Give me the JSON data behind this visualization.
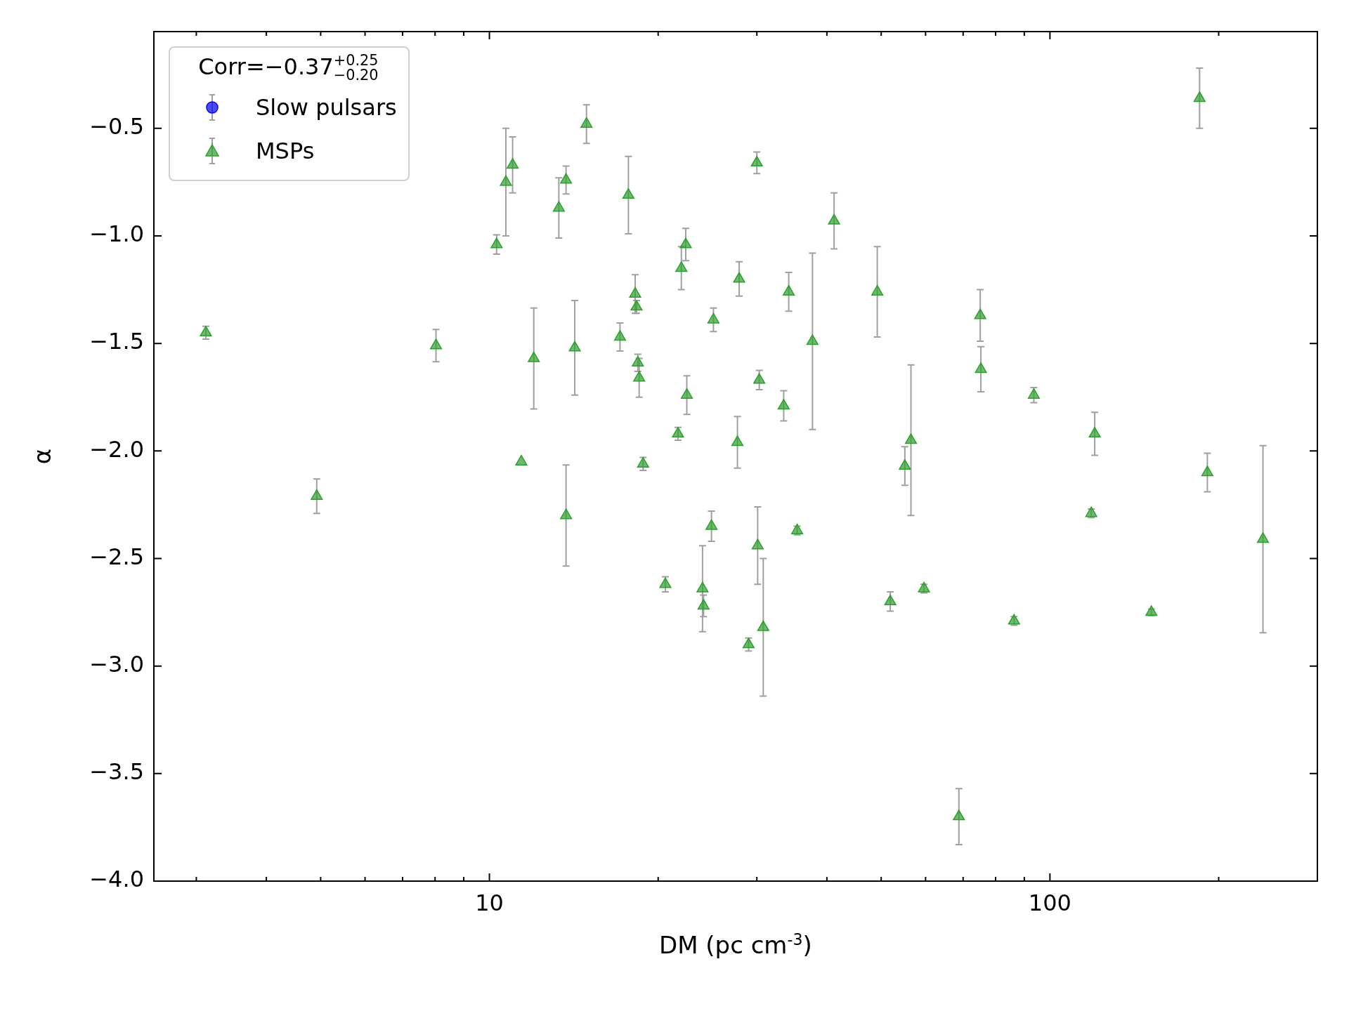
{
  "chart_data": {
    "type": "scatter",
    "xlabel": "DM (pc cm$^{-3}$)",
    "ylabel": "α",
    "legend_title": "Corr=−0.37$^{+0.25}$$_{−0.20}$",
    "legend": "top left",
    "log": "x",
    "grid": false,
    "xlim": [
      2.52,
      300
    ],
    "xticks": [
      {
        "value": 3,
        "label": null
      },
      {
        "value": 4,
        "label": null
      },
      {
        "value": 5,
        "label": null
      },
      {
        "value": 6,
        "label": null
      },
      {
        "value": 7,
        "label": null
      },
      {
        "value": 8,
        "label": null
      },
      {
        "value": 9,
        "label": null
      },
      10,
      {
        "value": 20,
        "label": null
      },
      {
        "value": 30,
        "label": null
      },
      {
        "value": 40,
        "label": null
      },
      {
        "value": 50,
        "label": null
      },
      {
        "value": 60,
        "label": null
      },
      {
        "value": 70,
        "label": null
      },
      {
        "value": 80,
        "label": null
      },
      {
        "value": 90,
        "label": null
      },
      100,
      {
        "value": 200,
        "label": null
      }
    ],
    "ylim": [
      -4.0,
      -0.05
    ],
    "yticks": [
      {
        "value": -4.0,
        "label": "−4.0"
      },
      {
        "value": -3.5,
        "label": "−3.5"
      },
      {
        "value": -3.0,
        "label": "−3.0"
      },
      {
        "value": -2.5,
        "label": "−2.5"
      },
      {
        "value": -2.0,
        "label": "−2.0"
      },
      {
        "value": -1.5,
        "label": "−1.5"
      },
      {
        "value": -1.0,
        "label": "−1.0"
      },
      {
        "value": -0.5,
        "label": "−0.5"
      }
    ],
    "series": [
      {
        "name": "Slow pulsars",
        "color": "#0000ff",
        "marker": "circle"
      },
      {
        "name": "MSPs",
        "color": "#2ca02c",
        "marker": "triangle",
        "x": [
          3.12,
          4.92,
          8.03,
          10.3,
          10.7,
          11.0,
          11.4,
          12.0,
          13.3,
          13.7,
          13.7,
          14.2,
          14.9,
          17.1,
          17.7,
          18.2,
          18.3,
          18.4,
          18.5,
          18.8,
          20.6,
          21.7,
          22.0,
          22.4,
          22.5,
          24.0,
          24.1,
          24.9,
          25.1,
          27.7,
          27.9,
          29.0,
          30.0,
          30.1,
          30.3,
          30.8,
          33.5,
          34.2,
          35.4,
          37.7,
          41.2,
          49.2,
          51.9,
          55.1,
          56.5,
          59.6,
          68.8,
          75.1,
          75.3,
          86.3,
          93.6,
          118.5,
          120.2,
          151.7,
          184.9,
          190.9,
          239.9
        ],
        "values": [
          -1.45,
          -2.21,
          -1.51,
          -1.04,
          -0.75,
          -0.67,
          -2.05,
          -1.57,
          -0.87,
          -0.74,
          -2.3,
          -1.52,
          -0.48,
          -1.47,
          -0.81,
          -1.27,
          -1.33,
          -1.59,
          -1.66,
          -2.06,
          -2.62,
          -1.92,
          -1.15,
          -1.04,
          -1.74,
          -2.64,
          -2.72,
          -2.35,
          -1.39,
          -1.96,
          -1.2,
          -2.9,
          -0.66,
          -2.44,
          -1.67,
          -2.82,
          -1.79,
          -1.26,
          -2.37,
          -1.49,
          -0.93,
          -1.26,
          -2.7,
          -2.07,
          -1.95,
          -2.64,
          -3.7,
          -1.37,
          -1.62,
          -2.79,
          -1.74,
          -2.29,
          -1.92,
          -2.75,
          -0.36,
          -2.1,
          -2.41
        ],
        "errors": [
          0.03,
          0.08,
          0.075,
          0.045,
          0.25,
          0.13,
          null,
          0.235,
          0.14,
          0.065,
          0.235,
          0.22,
          0.09,
          0.065,
          0.18,
          0.09,
          0.03,
          0.04,
          0.09,
          0.03,
          0.035,
          0.03,
          0.1,
          0.075,
          0.09,
          0.2,
          0.05,
          0.07,
          0.055,
          0.12,
          0.08,
          0.03,
          0.05,
          0.18,
          0.045,
          0.32,
          0.07,
          0.09,
          0.02,
          0.41,
          0.13,
          0.21,
          0.045,
          0.09,
          0.35,
          0.02,
          0.13,
          0.12,
          0.105,
          0.02,
          0.035,
          0.02,
          0.1,
          0.015,
          0.14,
          0.09,
          0.435
        ]
      }
    ]
  }
}
